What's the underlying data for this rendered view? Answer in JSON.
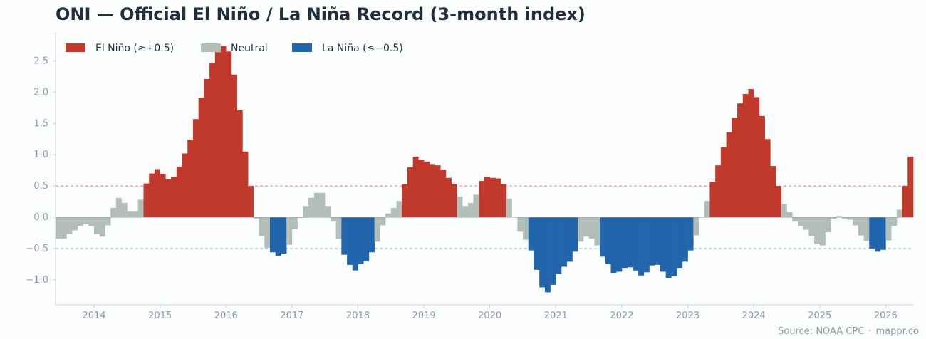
{
  "title": "ONI — Official El Niño / La Niña Record (3-month index)",
  "source": {
    "label": "Source: NOAA CPC",
    "separator": "·",
    "site": "mappr.co"
  },
  "colors": {
    "el_nino": "#c0392b",
    "neutral": "#b2bfb8",
    "la_nina": "#2166ac",
    "el_nino_line": "#e57f7f",
    "la_nina_line": "#8aa9d4",
    "zero_line": "#8a9aa8",
    "axis": "#c7d0d8"
  },
  "chart_data": {
    "type": "bar",
    "title": "ONI — Official El Niño / La Niña Record (3-month index)",
    "xlabel": "",
    "ylabel": "",
    "start": "2013-06",
    "ylim": [
      -1.4,
      2.95
    ],
    "xlim": [
      "2013-06",
      "2026-06"
    ],
    "yticks": [
      -1.0,
      -0.5,
      0.0,
      0.5,
      1.0,
      1.5,
      2.0,
      2.5
    ],
    "ytick_labels": [
      "−1.0",
      "−0.5",
      "0.0",
      "0.5",
      "1.0",
      "1.5",
      "2.0",
      "2.5"
    ],
    "xtick_labels": [
      "2014",
      "2015",
      "2016",
      "2017",
      "2018",
      "2019",
      "2020",
      "2021",
      "2022",
      "2023",
      "2024",
      "2025",
      "2026"
    ],
    "thresholds": [
      0.5,
      -0.5
    ],
    "legend": {
      "position": "top-left",
      "items": [
        {
          "label": "El Niño (≥+0.5)",
          "key": "el_nino"
        },
        {
          "label": "Neutral",
          "key": "neutral"
        },
        {
          "label": "La Niña (≤−0.5)",
          "key": "la_nina"
        }
      ]
    },
    "values": [
      -0.34,
      -0.34,
      -0.27,
      -0.21,
      -0.14,
      -0.11,
      -0.14,
      -0.27,
      -0.31,
      -0.13,
      0.15,
      0.31,
      0.23,
      0.1,
      0.1,
      0.28,
      0.54,
      0.7,
      0.77,
      0.69,
      0.61,
      0.65,
      0.81,
      1.02,
      1.24,
      1.57,
      1.91,
      2.21,
      2.47,
      2.64,
      2.74,
      2.65,
      2.28,
      1.71,
      1.05,
      0.5,
      -0.02,
      -0.3,
      -0.49,
      -0.56,
      -0.62,
      -0.58,
      -0.44,
      -0.19,
      -0.01,
      0.18,
      0.31,
      0.39,
      0.39,
      0.18,
      -0.07,
      -0.35,
      -0.6,
      -0.76,
      -0.85,
      -0.75,
      -0.7,
      -0.56,
      -0.39,
      -0.13,
      0.06,
      0.15,
      0.26,
      0.53,
      0.8,
      0.97,
      0.92,
      0.89,
      0.85,
      0.83,
      0.76,
      0.63,
      0.53,
      0.33,
      0.18,
      0.23,
      0.36,
      0.58,
      0.65,
      0.63,
      0.62,
      0.53,
      0.3,
      0.0,
      -0.23,
      -0.36,
      -0.53,
      -0.84,
      -1.12,
      -1.2,
      -1.08,
      -0.91,
      -0.79,
      -0.71,
      -0.55,
      -0.39,
      -0.31,
      -0.34,
      -0.45,
      -0.63,
      -0.75,
      -0.9,
      -0.87,
      -0.82,
      -0.8,
      -0.85,
      -0.93,
      -0.88,
      -0.77,
      -0.76,
      -0.87,
      -0.97,
      -0.94,
      -0.82,
      -0.71,
      -0.53,
      -0.29,
      0.0,
      0.26,
      0.57,
      0.83,
      1.12,
      1.36,
      1.59,
      1.82,
      1.97,
      2.05,
      1.92,
      1.62,
      1.25,
      0.82,
      0.5,
      0.21,
      0.08,
      -0.07,
      -0.14,
      -0.2,
      -0.3,
      -0.42,
      -0.45,
      -0.24,
      -0.02,
      0.02,
      -0.02,
      -0.04,
      -0.13,
      -0.29,
      -0.38,
      -0.5,
      -0.55,
      -0.52,
      -0.37,
      -0.14,
      0.12,
      0.5,
      0.97
    ]
  }
}
